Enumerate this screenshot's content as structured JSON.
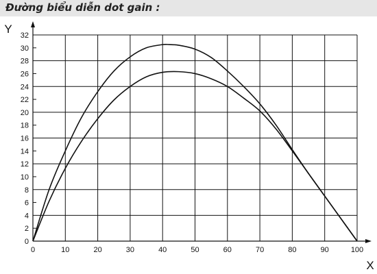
{
  "header": {
    "title": "Đường biểu diễn dot gain :",
    "background": "#e6e6e6"
  },
  "chart_data": {
    "type": "line",
    "title": "Đường biểu diễn dot gain :",
    "xlabel": "X",
    "ylabel": "Y",
    "xlim": [
      0,
      100
    ],
    "ylim": [
      0,
      32
    ],
    "x_ticks": [
      0,
      10,
      20,
      30,
      40,
      50,
      60,
      70,
      80,
      90,
      100
    ],
    "y_ticks": [
      0,
      2,
      4,
      6,
      8,
      10,
      12,
      14,
      16,
      18,
      20,
      22,
      24,
      26,
      28,
      30,
      32
    ],
    "grid": true,
    "line_color": "#111111",
    "series": [
      {
        "x": [
          0,
          5,
          10,
          15,
          20,
          25,
          30,
          35,
          40,
          42,
          45,
          50,
          55,
          60,
          65,
          70,
          75,
          80,
          85,
          90,
          95,
          100
        ],
        "y": [
          0,
          8,
          14,
          19.2,
          23.2,
          26.4,
          28.6,
          30,
          30.5,
          30.5,
          30.4,
          29.8,
          28.5,
          26.4,
          24,
          21.3,
          18,
          14.2,
          10.5,
          7,
          3.5,
          0
        ]
      },
      {
        "x": [
          0,
          5,
          10,
          15,
          20,
          25,
          30,
          35,
          40,
          45,
          50,
          55,
          60,
          65,
          70,
          75,
          80,
          85,
          90,
          95,
          100
        ],
        "y": [
          0,
          6.2,
          11.3,
          15.5,
          19,
          21.9,
          24,
          25.5,
          26.2,
          26.3,
          26,
          25.2,
          24,
          22.2,
          20.2,
          17.4,
          14,
          10.5,
          7,
          3.5,
          0
        ]
      }
    ]
  }
}
